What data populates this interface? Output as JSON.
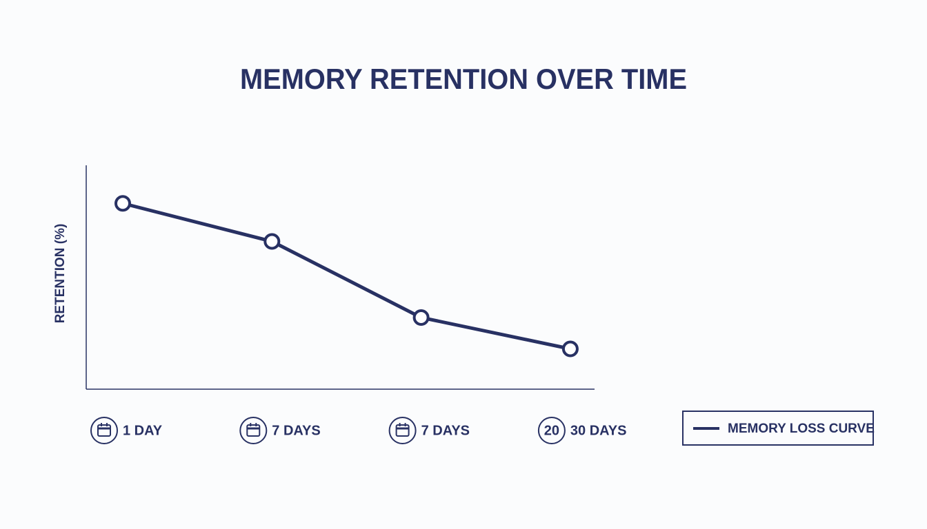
{
  "chart_data": {
    "type": "line",
    "title": "MEMORY RETENTION OVER TIME",
    "y_label": "RETENTION (%)",
    "categories": [
      "1 DAY",
      "7 DAYS",
      "7 DAYS",
      "30 DAYS"
    ],
    "category_icon_texts": [
      null,
      null,
      null,
      "20"
    ],
    "series": [
      {
        "name": "MEMORY LOSS CURVE",
        "color": "#283163",
        "values": [
          83,
          66,
          32,
          18
        ]
      }
    ],
    "ylim": [
      0,
      100
    ],
    "legend": "right"
  }
}
